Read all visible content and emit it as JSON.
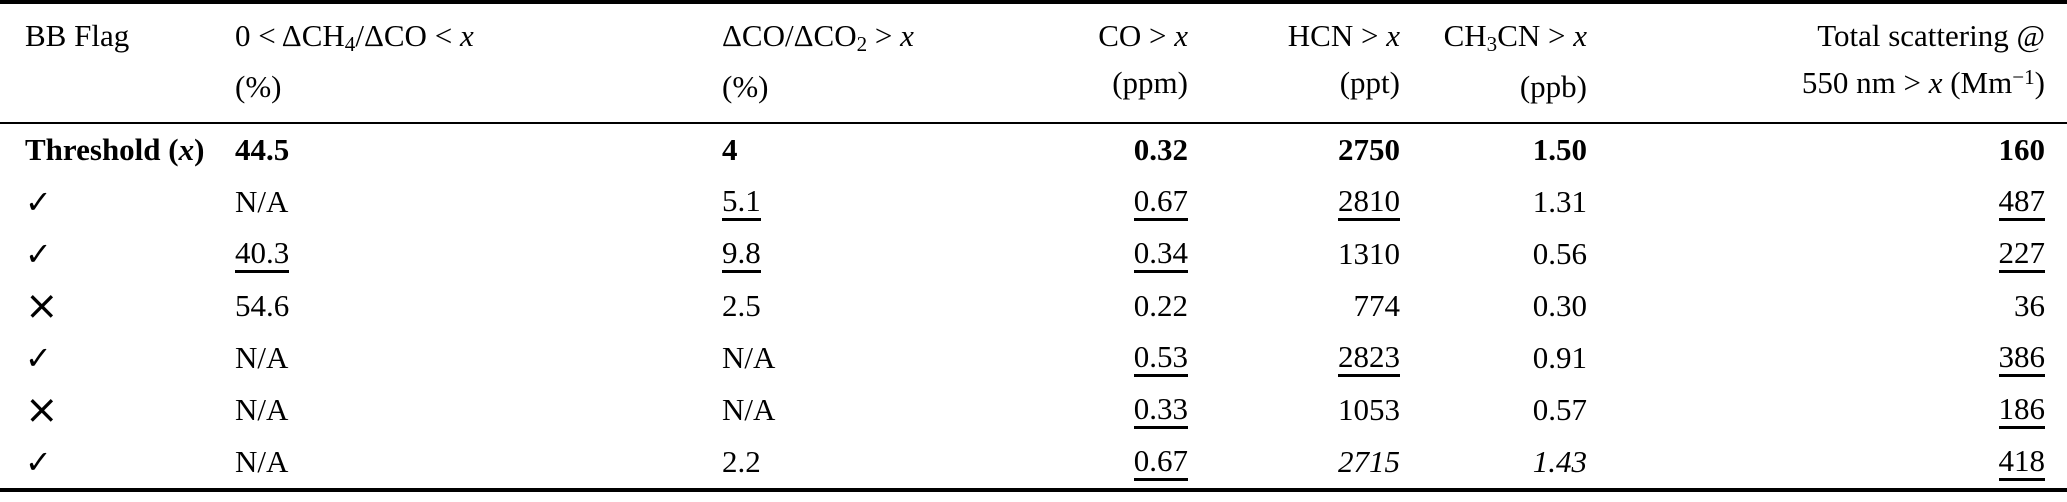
{
  "table": {
    "description_colors": {
      "text": "#000000",
      "background": "#ffffff",
      "rule": "#000000"
    },
    "columns": [
      {
        "id": "bb-flag",
        "align": "left",
        "line1": [
          {
            "t": "BB Flag"
          }
        ],
        "line2": []
      },
      {
        "id": "dch4-dco-ratio",
        "align": "left",
        "line1": [
          {
            "t": "0 < ΔCH"
          },
          {
            "t": "4",
            "sub": true
          },
          {
            "t": "/ΔCO < "
          },
          {
            "t": "x",
            "i": true
          }
        ],
        "line2": [
          {
            "t": "(%)"
          }
        ]
      },
      {
        "id": "dco-dco2-ratio",
        "align": "left",
        "line1": [
          {
            "t": "ΔCO/ΔCO"
          },
          {
            "t": "2",
            "sub": true
          },
          {
            "t": " > "
          },
          {
            "t": "x",
            "i": true
          }
        ],
        "line2": [
          {
            "t": "(%)"
          }
        ]
      },
      {
        "id": "co",
        "align": "right",
        "line1": [
          {
            "t": "CO > "
          },
          {
            "t": "x",
            "i": true
          }
        ],
        "line2": [
          {
            "t": "(ppm)"
          }
        ]
      },
      {
        "id": "hcn",
        "align": "right",
        "line1": [
          {
            "t": "HCN > "
          },
          {
            "t": "x",
            "i": true
          }
        ],
        "line2": [
          {
            "t": "(ppt)"
          }
        ]
      },
      {
        "id": "ch3cn",
        "align": "right",
        "line1": [
          {
            "t": "CH"
          },
          {
            "t": "3",
            "sub": true
          },
          {
            "t": "CN > "
          },
          {
            "t": "x",
            "i": true
          }
        ],
        "line2": [
          {
            "t": "(ppb)"
          }
        ]
      },
      {
        "id": "total-scattering-550nm",
        "align": "right",
        "line1": [
          {
            "t": "Total scattering @"
          }
        ],
        "line2": [
          {
            "t": "550 nm > "
          },
          {
            "t": "x",
            "i": true
          },
          {
            "t": " (Mm"
          },
          {
            "t": "−1",
            "sup": true
          },
          {
            "t": ")"
          }
        ]
      }
    ],
    "rows": [
      {
        "kind": "threshold",
        "label_parts": [
          {
            "t": "Threshold ("
          },
          {
            "t": "x",
            "i": true
          },
          {
            "t": ")"
          }
        ],
        "cells": [
          {
            "t": "44.5"
          },
          {
            "t": "4"
          },
          {
            "t": "0.32"
          },
          {
            "t": "2750"
          },
          {
            "t": "1.50"
          },
          {
            "t": "160"
          }
        ]
      },
      {
        "kind": "data",
        "flag": "check",
        "symbol": "✓",
        "cells": [
          {
            "t": "N/A"
          },
          {
            "t": "5.1",
            "u": true
          },
          {
            "t": "0.67",
            "u": true
          },
          {
            "t": "2810",
            "u": true
          },
          {
            "t": "1.31"
          },
          {
            "t": "487",
            "u": true
          }
        ]
      },
      {
        "kind": "data",
        "flag": "check",
        "symbol": "✓",
        "cells": [
          {
            "t": "40.3",
            "u": true
          },
          {
            "t": "9.8",
            "u": true
          },
          {
            "t": "0.34",
            "u": true
          },
          {
            "t": "1310"
          },
          {
            "t": "0.56"
          },
          {
            "t": "227",
            "u": true
          }
        ]
      },
      {
        "kind": "data",
        "flag": "cross",
        "symbol": "×",
        "cells": [
          {
            "t": "54.6"
          },
          {
            "t": "2.5"
          },
          {
            "t": "0.22"
          },
          {
            "t": "774"
          },
          {
            "t": "0.30"
          },
          {
            "t": "36"
          }
        ]
      },
      {
        "kind": "data",
        "flag": "check",
        "symbol": "✓",
        "cells": [
          {
            "t": "N/A"
          },
          {
            "t": "N/A"
          },
          {
            "t": "0.53",
            "u": true
          },
          {
            "t": "2823",
            "u": true
          },
          {
            "t": "0.91"
          },
          {
            "t": "386",
            "u": true
          }
        ]
      },
      {
        "kind": "data",
        "flag": "cross",
        "symbol": "×",
        "cells": [
          {
            "t": "N/A"
          },
          {
            "t": "N/A"
          },
          {
            "t": "0.33",
            "u": true
          },
          {
            "t": "1053"
          },
          {
            "t": "0.57"
          },
          {
            "t": "186",
            "u": true
          }
        ]
      },
      {
        "kind": "data",
        "flag": "check",
        "symbol": "✓",
        "cells": [
          {
            "t": "N/A"
          },
          {
            "t": "2.2"
          },
          {
            "t": "0.67",
            "u": true
          },
          {
            "t": "2715",
            "i": true
          },
          {
            "t": "1.43",
            "i": true
          },
          {
            "t": "418",
            "u": true
          }
        ]
      }
    ]
  }
}
